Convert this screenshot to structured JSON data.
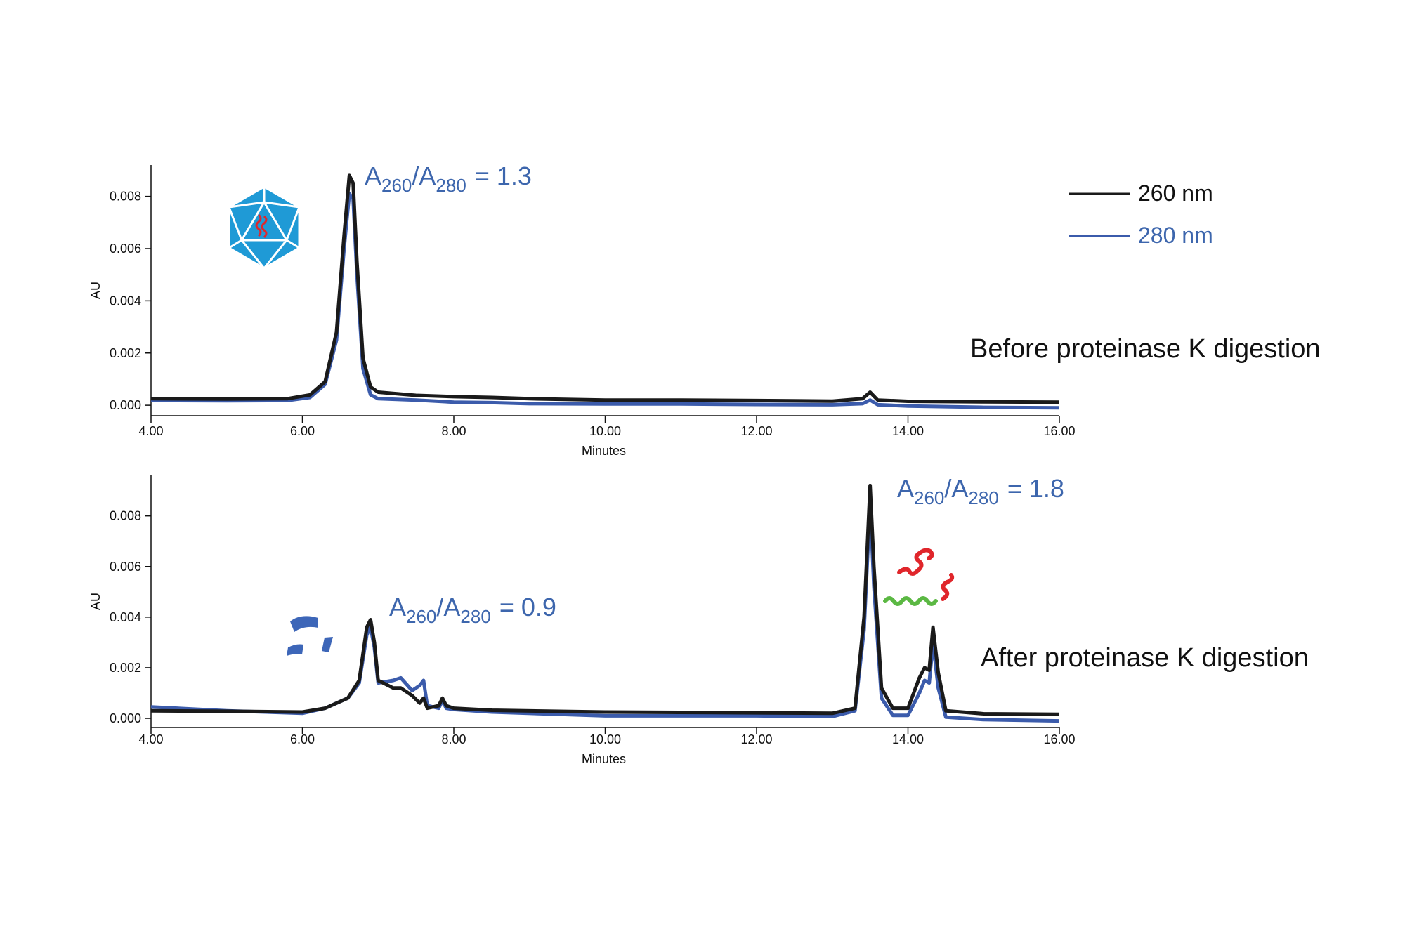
{
  "chart_data": [
    {
      "type": "line",
      "y_label": "AU",
      "x_label": "Minutes",
      "label": "Before proteinase K digestion",
      "annotations": [
        {
          "a": "A",
          "sub1": "260",
          "mid": "/A",
          "sub2": "280",
          "rest": "= 1.3"
        }
      ],
      "xlim": [
        4,
        16
      ],
      "ylim": [
        -0.0004,
        0.0092
      ],
      "xticks": [
        {
          "value": 4,
          "label": "4.00"
        },
        {
          "value": 6,
          "label": "6.00"
        },
        {
          "value": 8,
          "label": "8.00"
        },
        {
          "value": 10,
          "label": "10.00"
        },
        {
          "value": 12,
          "label": "12.00"
        },
        {
          "value": 14,
          "label": "14.00"
        },
        {
          "value": 16,
          "label": "16.00"
        }
      ],
      "yticks": [
        {
          "value": 0,
          "label": "0.000"
        },
        {
          "value": 0.002,
          "label": "0.002"
        },
        {
          "value": 0.004,
          "label": "0.004"
        },
        {
          "value": 0.006,
          "label": "0.006"
        },
        {
          "value": 0.008,
          "label": "0.008"
        }
      ],
      "x": [
        4,
        5,
        5.8,
        6.1,
        6.3,
        6.45,
        6.55,
        6.62,
        6.67,
        6.72,
        6.8,
        6.9,
        7.0,
        7.5,
        8,
        8.5,
        9,
        10,
        11,
        12,
        13,
        13.4,
        13.5,
        13.6,
        14,
        15,
        16
      ],
      "series": [
        {
          "name": "280 nm",
          "color": "#3b5bab",
          "values": [
            0.00018,
            0.00017,
            0.00018,
            0.0003,
            0.0008,
            0.0025,
            0.006,
            0.0081,
            0.0079,
            0.005,
            0.0014,
            0.0004,
            0.00025,
            0.0002,
            0.00012,
            0.0001,
            6e-05,
            5e-05,
            5e-05,
            3e-05,
            2e-05,
            6e-05,
            0.0002,
            2e-05,
            -3e-05,
            -8e-05,
            -0.0001
          ]
        },
        {
          "name": "260 nm",
          "color": "#1a1a1a",
          "values": [
            0.00025,
            0.00024,
            0.00025,
            0.0004,
            0.0009,
            0.0028,
            0.0065,
            0.0088,
            0.0085,
            0.0055,
            0.0018,
            0.0007,
            0.0005,
            0.00038,
            0.00033,
            0.0003,
            0.00025,
            0.0002,
            0.0002,
            0.00018,
            0.00016,
            0.00025,
            0.0005,
            0.0002,
            0.00015,
            0.00013,
            0.00012
          ]
        }
      ]
    },
    {
      "type": "line",
      "y_label": "AU",
      "x_label": "Minutes",
      "label": "After proteinase K digestion",
      "annotations": [
        {
          "a": "A",
          "sub1": "260",
          "mid": "/A",
          "sub2": "280",
          "rest": "= 1.8"
        },
        {
          "a": "A",
          "sub1": "260",
          "mid": "/A",
          "sub2": "280",
          "rest": "= 0.9"
        }
      ],
      "xlim": [
        4,
        16
      ],
      "ylim": [
        -0.00036,
        0.0096
      ],
      "xticks": [
        {
          "value": 4,
          "label": "4.00"
        },
        {
          "value": 6,
          "label": "6.00"
        },
        {
          "value": 8,
          "label": "8.00"
        },
        {
          "value": 10,
          "label": "10.00"
        },
        {
          "value": 12,
          "label": "12.00"
        },
        {
          "value": 14,
          "label": "14.00"
        },
        {
          "value": 16,
          "label": "16.00"
        }
      ],
      "yticks": [
        {
          "value": 0,
          "label": "0.000"
        },
        {
          "value": 0.002,
          "label": "0.002"
        },
        {
          "value": 0.004,
          "label": "0.004"
        },
        {
          "value": 0.006,
          "label": "0.006"
        },
        {
          "value": 0.008,
          "label": "0.008"
        }
      ],
      "x": [
        4,
        5,
        6,
        6.3,
        6.6,
        6.75,
        6.85,
        6.9,
        6.95,
        7.0,
        7.2,
        7.3,
        7.45,
        7.55,
        7.6,
        7.65,
        7.8,
        7.85,
        7.9,
        8.0,
        8.5,
        10,
        12,
        13,
        13.3,
        13.42,
        13.5,
        13.55,
        13.65,
        13.8,
        14.0,
        14.15,
        14.22,
        14.28,
        14.33,
        14.4,
        14.5,
        15,
        16
      ],
      "series": [
        {
          "color": "#3b5bab",
          "values": [
            0.00045,
            0.0003,
            0.0002,
            0.0004,
            0.0008,
            0.0014,
            0.0033,
            0.0036,
            0.0028,
            0.0014,
            0.0015,
            0.0016,
            0.0011,
            0.0013,
            0.0015,
            0.0005,
            0.0004,
            0.0007,
            0.0004,
            0.00035,
            0.00025,
            0.0001,
            0.0001,
            7e-05,
            0.0003,
            0.0035,
            0.0085,
            0.0052,
            0.0008,
            0.00012,
            0.00012,
            0.001,
            0.0015,
            0.0014,
            0.003,
            0.0012,
            5e-05,
            -5e-05,
            -0.0001
          ]
        },
        {
          "color": "#1a1a1a",
          "values": [
            0.0003,
            0.00028,
            0.00025,
            0.0004,
            0.0008,
            0.0015,
            0.0036,
            0.0039,
            0.003,
            0.0015,
            0.0012,
            0.0012,
            0.0009,
            0.0006,
            0.0008,
            0.0004,
            0.0005,
            0.0008,
            0.0005,
            0.0004,
            0.00032,
            0.00025,
            0.00022,
            0.0002,
            0.0004,
            0.004,
            0.0092,
            0.006,
            0.0012,
            0.0004,
            0.0004,
            0.0016,
            0.002,
            0.0019,
            0.0036,
            0.0018,
            0.0003,
            0.00018,
            0.00016
          ]
        }
      ]
    }
  ]
}
